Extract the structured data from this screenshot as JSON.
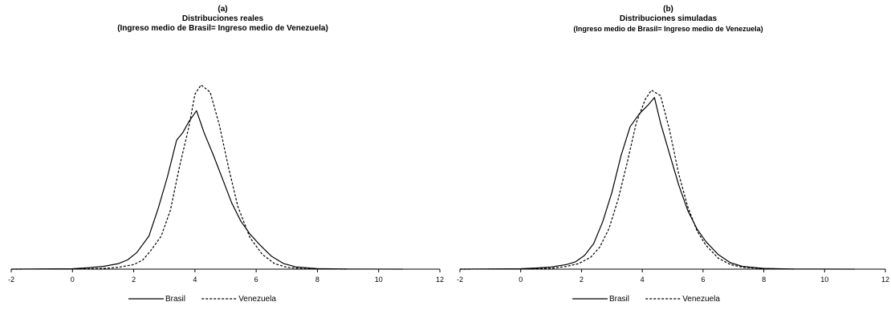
{
  "chart_data": [
    {
      "type": "line",
      "title": "(a)",
      "subtitle": "Distribuciones reales",
      "subtitle2": "(Ingreso medio de Brasil= Ingreso medio de Venezuela)",
      "xlim": [
        -2,
        12
      ],
      "ylim": [
        0,
        1
      ],
      "x_ticks": [
        -2,
        0,
        2,
        4,
        6,
        8,
        10,
        12
      ],
      "grid": false,
      "legend_position": "bottom",
      "series": [
        {
          "name": "Brasil",
          "style": "solid",
          "points": [
            [
              -2,
              0
            ],
            [
              0,
              0.002
            ],
            [
              0.5,
              0.008
            ],
            [
              1,
              0.015
            ],
            [
              1.5,
              0.03
            ],
            [
              1.8,
              0.05
            ],
            [
              2.1,
              0.09
            ],
            [
              2.5,
              0.18
            ],
            [
              2.8,
              0.33
            ],
            [
              3.1,
              0.5
            ],
            [
              3.4,
              0.7
            ],
            [
              3.6,
              0.74
            ],
            [
              3.8,
              0.8
            ],
            [
              4.05,
              0.86
            ],
            [
              4.3,
              0.74
            ],
            [
              4.6,
              0.62
            ],
            [
              4.9,
              0.49
            ],
            [
              5.2,
              0.36
            ],
            [
              5.5,
              0.26
            ],
            [
              5.8,
              0.19
            ],
            [
              6.1,
              0.135
            ],
            [
              6.5,
              0.07
            ],
            [
              6.9,
              0.03
            ],
            [
              7.3,
              0.012
            ],
            [
              8,
              0.003
            ],
            [
              9,
              0.001
            ],
            [
              10.8,
              0
            ]
          ]
        },
        {
          "name": "Venezuela",
          "style": "dotted",
          "points": [
            [
              -2,
              0
            ],
            [
              0,
              0.001
            ],
            [
              1,
              0.004
            ],
            [
              1.5,
              0.01
            ],
            [
              2,
              0.025
            ],
            [
              2.3,
              0.05
            ],
            [
              2.6,
              0.11
            ],
            [
              2.9,
              0.18
            ],
            [
              3.2,
              0.32
            ],
            [
              3.5,
              0.56
            ],
            [
              3.8,
              0.77
            ],
            [
              4.0,
              0.95
            ],
            [
              4.2,
              1.0
            ],
            [
              4.5,
              0.96
            ],
            [
              4.8,
              0.78
            ],
            [
              5.1,
              0.55
            ],
            [
              5.4,
              0.34
            ],
            [
              5.8,
              0.17
            ],
            [
              6.2,
              0.08
            ],
            [
              6.6,
              0.03
            ],
            [
              7,
              0.01
            ],
            [
              7.5,
              0.003
            ],
            [
              8,
              0.001
            ],
            [
              9,
              0
            ]
          ]
        }
      ]
    },
    {
      "type": "line",
      "title": "(b)",
      "subtitle": "Distribuciones simuladas",
      "subtitle2": "(Ingreso medio de Brasil= Ingreso medio de Venezuela)",
      "xlim": [
        -2,
        12
      ],
      "ylim": [
        0,
        1
      ],
      "x_ticks": [
        -2,
        0,
        2,
        4,
        6,
        8,
        10,
        12
      ],
      "grid": false,
      "legend_position": "bottom",
      "series": [
        {
          "name": "Brasil",
          "style": "solid",
          "points": [
            [
              -2,
              0
            ],
            [
              0,
              0.002
            ],
            [
              0.5,
              0.006
            ],
            [
              1,
              0.012
            ],
            [
              1.5,
              0.025
            ],
            [
              1.8,
              0.04
            ],
            [
              2.1,
              0.075
            ],
            [
              2.4,
              0.14
            ],
            [
              2.7,
              0.26
            ],
            [
              3.0,
              0.42
            ],
            [
              3.3,
              0.62
            ],
            [
              3.6,
              0.78
            ],
            [
              3.9,
              0.85
            ],
            [
              4.2,
              0.9
            ],
            [
              4.4,
              0.94
            ],
            [
              4.6,
              0.8
            ],
            [
              4.9,
              0.63
            ],
            [
              5.2,
              0.46
            ],
            [
              5.5,
              0.32
            ],
            [
              5.8,
              0.22
            ],
            [
              6.1,
              0.15
            ],
            [
              6.5,
              0.08
            ],
            [
              6.9,
              0.035
            ],
            [
              7.3,
              0.015
            ],
            [
              8,
              0.004
            ],
            [
              9,
              0.001
            ],
            [
              11,
              0
            ]
          ]
        },
        {
          "name": "Venezuela",
          "style": "dotted",
          "points": [
            [
              -2,
              0
            ],
            [
              0,
              0.001
            ],
            [
              1,
              0.005
            ],
            [
              1.5,
              0.015
            ],
            [
              1.9,
              0.03
            ],
            [
              2.3,
              0.065
            ],
            [
              2.6,
              0.12
            ],
            [
              2.9,
              0.22
            ],
            [
              3.2,
              0.38
            ],
            [
              3.5,
              0.58
            ],
            [
              3.8,
              0.8
            ],
            [
              4.1,
              0.93
            ],
            [
              4.3,
              0.98
            ],
            [
              4.6,
              0.95
            ],
            [
              4.9,
              0.76
            ],
            [
              5.2,
              0.52
            ],
            [
              5.5,
              0.34
            ],
            [
              5.8,
              0.21
            ],
            [
              6.1,
              0.13
            ],
            [
              6.5,
              0.06
            ],
            [
              6.9,
              0.025
            ],
            [
              7.3,
              0.01
            ],
            [
              8,
              0.003
            ],
            [
              9,
              0
            ]
          ]
        }
      ]
    }
  ]
}
